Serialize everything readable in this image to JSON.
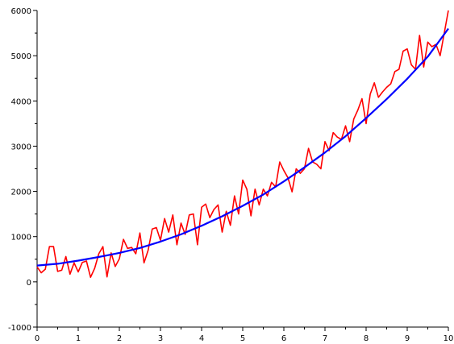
{
  "chart_data": {
    "type": "line",
    "title": "",
    "xlabel": "",
    "ylabel": "",
    "xlim": [
      0,
      10
    ],
    "ylim": [
      -1000,
      6000
    ],
    "grid": false,
    "legend": "none",
    "x_ticks": [
      "0",
      "1",
      "2",
      "3",
      "4",
      "5",
      "6",
      "7",
      "8",
      "9",
      "10"
    ],
    "y_ticks": [
      "-1000",
      "0",
      "1000",
      "2000",
      "3000",
      "4000",
      "5000",
      "6000"
    ],
    "series": [
      {
        "color": "#ff0000",
        "x": [
          0.0,
          0.1,
          0.2,
          0.3,
          0.4,
          0.5,
          0.6,
          0.7,
          0.8,
          0.9,
          1.0,
          1.1,
          1.2,
          1.3,
          1.4,
          1.5,
          1.6,
          1.7,
          1.8,
          1.9,
          2.0,
          2.1,
          2.2,
          2.3,
          2.4,
          2.5,
          2.6,
          2.7,
          2.8,
          2.9,
          3.0,
          3.1,
          3.2,
          3.3,
          3.4,
          3.5,
          3.6,
          3.7,
          3.8,
          3.9,
          4.0,
          4.1,
          4.2,
          4.3,
          4.4,
          4.5,
          4.6,
          4.7,
          4.8,
          4.9,
          5.0,
          5.1,
          5.2,
          5.3,
          5.4,
          5.5,
          5.6,
          5.7,
          5.8,
          5.9,
          6.0,
          6.1,
          6.2,
          6.3,
          6.4,
          6.5,
          6.6,
          6.7,
          6.8,
          6.9,
          7.0,
          7.1,
          7.2,
          7.3,
          7.4,
          7.5,
          7.6,
          7.7,
          7.8,
          7.9,
          8.0,
          8.1,
          8.2,
          8.3,
          8.4,
          8.5,
          8.6,
          8.7,
          8.8,
          8.9,
          9.0,
          9.1,
          9.2,
          9.3,
          9.4,
          9.5,
          9.6,
          9.7,
          9.8,
          9.9,
          10.0
        ],
        "y": [
          330,
          200,
          280,
          780,
          780,
          230,
          260,
          560,
          170,
          420,
          220,
          430,
          460,
          100,
          300,
          620,
          780,
          110,
          640,
          340,
          510,
          940,
          740,
          760,
          620,
          1080,
          420,
          700,
          1170,
          1200,
          920,
          1400,
          1100,
          1480,
          820,
          1300,
          1050,
          1480,
          1500,
          820,
          1650,
          1720,
          1420,
          1600,
          1700,
          1100,
          1560,
          1250,
          1900,
          1500,
          2250,
          2050,
          1460,
          2050,
          1700,
          2050,
          1900,
          2200,
          2100,
          2650,
          2460,
          2300,
          1990,
          2500,
          2400,
          2500,
          2950,
          2650,
          2600,
          2500,
          3100,
          2900,
          3300,
          3200,
          3150,
          3450,
          3100,
          3600,
          3800,
          4050,
          3500,
          4150,
          4400,
          4080,
          4200,
          4300,
          4380,
          4650,
          4700,
          5100,
          5150,
          4800,
          4700,
          5450,
          4750,
          5300,
          5200,
          5250,
          5000,
          5500,
          6000
        ]
      },
      {
        "color": "#0000ff",
        "x": [
          0,
          0.5,
          1,
          1.5,
          2,
          2.5,
          3,
          3.5,
          4,
          4.5,
          5,
          5.5,
          6,
          6.5,
          7,
          7.5,
          8,
          8.5,
          9,
          9.5,
          10
        ],
        "y": [
          360,
          400,
          470,
          550,
          640,
          750,
          890,
          1050,
          1240,
          1450,
          1680,
          1930,
          2220,
          2530,
          2860,
          3220,
          3620,
          4040,
          4490,
          4980,
          5600
        ]
      }
    ]
  }
}
